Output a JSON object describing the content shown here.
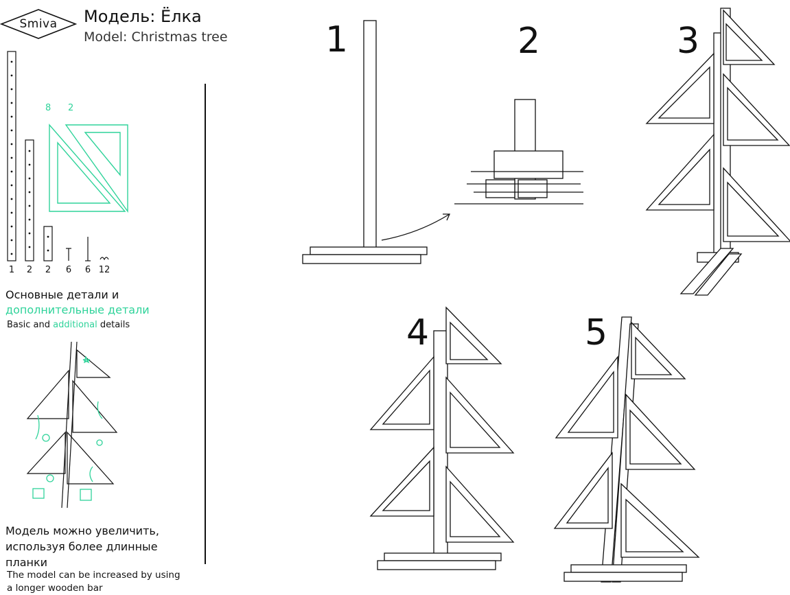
{
  "brand": {
    "logo_text": "Smiva"
  },
  "header": {
    "title_ru": "Модель: Ёлка",
    "title_en": "Model: Christmas tree"
  },
  "parts": {
    "basic_quantities": [
      "1",
      "2",
      "2",
      "6",
      "6",
      "12"
    ],
    "additional_quantities": [
      "8",
      "2"
    ]
  },
  "sections": {
    "details_ru_basic": "Основные детали и",
    "details_ru_additional": "дополнительные детали",
    "details_en_basic": "Basic and",
    "details_en_additional": "additional",
    "details_en_end": "details",
    "extend_ru": "Модель можно увеличить, используя более длинные планки",
    "extend_en": "The model can be increased by using a longer wooden bar"
  },
  "steps": [
    "1",
    "2",
    "3",
    "4",
    "5"
  ],
  "colors": {
    "accent": "#2fd39a",
    "ink": "#111111"
  }
}
